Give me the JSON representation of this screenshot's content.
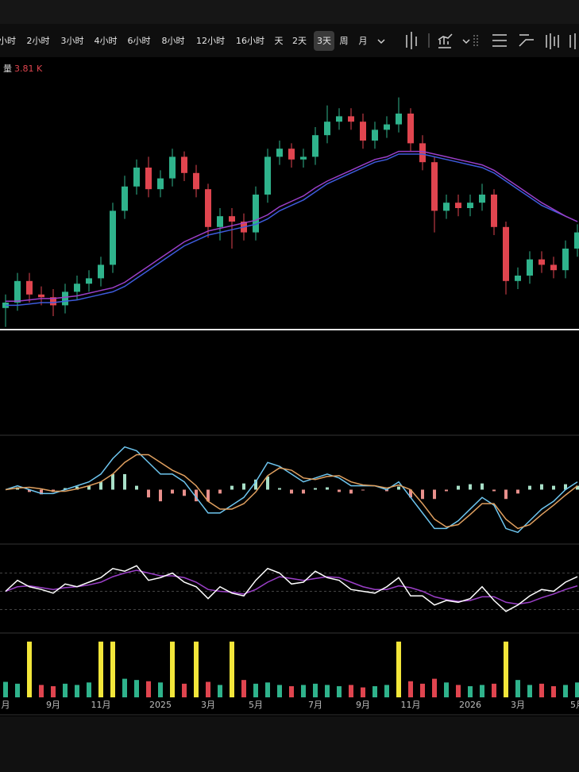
{
  "toolbar": {
    "intervals": [
      "小时",
      "2小时",
      "3小时",
      "4小时",
      "6小时",
      "8小时",
      "12小时",
      "16小时",
      "天",
      "2天",
      "3天",
      "周",
      "月"
    ],
    "selected": 10
  },
  "chart_data": [
    {
      "type": "candlestick",
      "volume_label": "量",
      "volume_value": "3.81 K",
      "categories": [
        "月",
        null,
        null,
        null,
        "9月",
        null,
        null,
        null,
        "11月",
        null,
        null,
        null,
        null,
        "2025",
        null,
        null,
        null,
        "3月",
        null,
        null,
        null,
        "5月",
        null,
        null,
        null,
        null,
        "7月",
        null,
        null,
        null,
        "9月",
        null,
        null,
        null,
        "11月",
        null,
        null,
        null,
        null,
        "2026",
        null,
        null,
        null,
        "3月",
        null,
        null,
        null,
        null,
        "5月"
      ],
      "open": [
        8,
        10,
        18,
        13,
        12,
        9,
        14,
        17,
        19,
        24,
        44,
        53,
        60,
        52,
        56,
        64,
        58,
        52,
        38,
        42,
        40,
        36,
        50,
        64,
        67,
        63,
        64,
        72,
        77,
        79,
        77,
        70,
        74,
        76,
        80,
        69,
        62,
        44,
        47,
        45,
        47,
        50,
        38,
        18,
        20,
        26,
        24,
        22,
        30
      ],
      "close": [
        10,
        18,
        13,
        12,
        9,
        14,
        17,
        19,
        24,
        44,
        53,
        60,
        52,
        56,
        64,
        58,
        52,
        38,
        42,
        40,
        36,
        50,
        64,
        67,
        63,
        64,
        72,
        77,
        79,
        77,
        70,
        74,
        76,
        80,
        69,
        62,
        44,
        47,
        45,
        47,
        50,
        38,
        18,
        20,
        26,
        24,
        22,
        30,
        36
      ],
      "high": [
        13,
        21,
        21,
        16,
        15,
        17,
        20,
        22,
        27,
        47,
        57,
        63,
        64,
        59,
        67,
        66,
        61,
        54,
        45,
        45,
        43,
        53,
        67,
        70,
        69,
        67,
        75,
        83,
        82,
        82,
        80,
        77,
        79,
        86,
        82,
        72,
        64,
        50,
        50,
        50,
        54,
        52,
        40,
        23,
        29,
        29,
        27,
        33,
        39
      ],
      "low": [
        1,
        7,
        10,
        9,
        5,
        6,
        11,
        14,
        16,
        21,
        41,
        50,
        49,
        49,
        53,
        55,
        49,
        34,
        33,
        30,
        33,
        33,
        47,
        61,
        60,
        60,
        61,
        69,
        74,
        74,
        67,
        67,
        71,
        73,
        66,
        59,
        36,
        41,
        42,
        42,
        44,
        35,
        13,
        15,
        17,
        21,
        19,
        19,
        27
      ],
      "up_color": "#2fb38c",
      "down_color": "#e0454f",
      "ylim": [
        0,
        100
      ],
      "series": [
        {
          "color": "#3d5bdc",
          "values": [
            9,
            9,
            9.5,
            10,
            10,
            10.5,
            11,
            12,
            13,
            14,
            16,
            19,
            22,
            25,
            28,
            31,
            33,
            35,
            36,
            37,
            38,
            39,
            41,
            44,
            46,
            48,
            51,
            54,
            56,
            58,
            60,
            62,
            63,
            65,
            65,
            65,
            64,
            63,
            62,
            61,
            60,
            58,
            55,
            52,
            49,
            46,
            44,
            42,
            40
          ]
        },
        {
          "color": "#9b3fc8",
          "values": [
            10.5,
            10.5,
            11,
            11.5,
            11.5,
            12,
            12.5,
            13.5,
            14.5,
            15.5,
            17.5,
            20.5,
            23.5,
            26.5,
            29.5,
            32.5,
            34.5,
            36.5,
            37.5,
            38.5,
            39.5,
            40.5,
            42.5,
            45.5,
            47.5,
            49.5,
            52.5,
            55,
            57,
            59,
            61,
            63,
            64,
            66,
            66,
            66,
            65,
            64,
            63,
            62,
            61,
            59,
            56,
            53,
            50,
            47,
            44.5,
            42,
            40
          ]
        }
      ]
    },
    {
      "type": "macd",
      "ylim": [
        -7,
        7
      ],
      "series": [
        {
          "color": "#6ec6f0",
          "values": [
            0,
            0.5,
            0,
            -0.5,
            -0.5,
            0,
            0.5,
            1,
            2,
            4,
            5.5,
            5,
            3.5,
            2,
            2,
            1,
            -1,
            -3,
            -3,
            -2,
            -1,
            1,
            3.5,
            3,
            2,
            1,
            1.5,
            2,
            1.5,
            0.5,
            0.5,
            0.5,
            0,
            1,
            -1,
            -3,
            -5,
            -5,
            -4,
            -2.5,
            -1,
            -2,
            -5,
            -5.5,
            -4,
            -2.5,
            -1.5,
            0,
            1
          ]
        },
        {
          "color": "#e0a060",
          "values": [
            0,
            0.2,
            0.3,
            0.1,
            -0.2,
            -0.2,
            0.1,
            0.5,
            1,
            2,
            3.5,
            4.5,
            4.5,
            3.5,
            2.5,
            1.8,
            0.5,
            -1.5,
            -2.5,
            -2.5,
            -1.8,
            -0.3,
            1.8,
            2.8,
            2.5,
            1.5,
            1.3,
            1.7,
            1.8,
            1,
            0.6,
            0.5,
            0.2,
            0.6,
            0,
            -1.8,
            -3.8,
            -4.8,
            -4.5,
            -3.2,
            -1.8,
            -1.8,
            -3.8,
            -5,
            -4.5,
            -3.2,
            -2,
            -0.7,
            0.5
          ]
        }
      ],
      "histogram": {
        "up_color": "#a8e0c8",
        "down_color": "#e8908c",
        "values": [
          0,
          0.3,
          -0.3,
          -0.6,
          -0.3,
          0.2,
          0.4,
          0.5,
          1,
          2,
          2,
          0.5,
          -1,
          -1.5,
          -0.5,
          -0.8,
          -1.5,
          -1.5,
          -0.5,
          0.5,
          0.8,
          1.3,
          1.7,
          0.2,
          -0.5,
          -0.5,
          0.2,
          0.3,
          -0.3,
          -0.5,
          -0.1,
          0,
          -0.2,
          0.4,
          -1,
          -1.2,
          -1.2,
          -0.2,
          0.5,
          0.7,
          0.8,
          -0.2,
          -1.2,
          -0.5,
          0.5,
          0.7,
          0.5,
          0.7,
          0.5
        ]
      }
    },
    {
      "type": "line",
      "ylim": [
        0,
        100
      ],
      "yticks": [
        30,
        50,
        70
      ],
      "grid": true,
      "series": [
        {
          "color": "#9b3fc8",
          "values": [
            50,
            55,
            56,
            54,
            52,
            54,
            55,
            57,
            60,
            66,
            70,
            73,
            70,
            67,
            67,
            65,
            60,
            52,
            50,
            49,
            47,
            52,
            60,
            66,
            64,
            62,
            64,
            66,
            65,
            60,
            55,
            52,
            52,
            56,
            54,
            50,
            44,
            41,
            39,
            40,
            44,
            44,
            38,
            36,
            38,
            43,
            47,
            52,
            56
          ]
        },
        {
          "color": "#ffffff",
          "values": [
            50,
            62,
            55,
            52,
            48,
            58,
            55,
            60,
            65,
            75,
            72,
            78,
            62,
            65,
            70,
            60,
            55,
            42,
            55,
            48,
            45,
            62,
            75,
            70,
            58,
            60,
            72,
            65,
            62,
            52,
            50,
            48,
            55,
            65,
            45,
            45,
            35,
            40,
            38,
            42,
            55,
            40,
            28,
            35,
            45,
            52,
            50,
            60,
            66
          ]
        }
      ]
    },
    {
      "type": "bar",
      "ylim": [
        0,
        100
      ],
      "values": [
        25,
        22,
        90,
        20,
        18,
        22,
        20,
        24,
        90,
        90,
        30,
        28,
        26,
        24,
        90,
        22,
        90,
        25,
        20,
        90,
        28,
        22,
        24,
        20,
        18,
        20,
        22,
        20,
        18,
        20,
        16,
        18,
        20,
        90,
        26,
        22,
        30,
        24,
        20,
        18,
        20,
        22,
        90,
        28,
        20,
        22,
        18,
        20,
        24
      ],
      "colors": [
        "#2fb38c",
        "#2fb38c",
        "#f2e63a",
        "#e0454f",
        "#e0454f",
        "#2fb38c",
        "#2fb38c",
        "#2fb38c",
        "#f2e63a",
        "#f2e63a",
        "#2fb38c",
        "#2fb38c",
        "#e0454f",
        "#2fb38c",
        "#f2e63a",
        "#e0454f",
        "#f2e63a",
        "#e0454f",
        "#2fb38c",
        "#f2e63a",
        "#e0454f",
        "#2fb38c",
        "#2fb38c",
        "#2fb38c",
        "#e0454f",
        "#2fb38c",
        "#2fb38c",
        "#2fb38c",
        "#2fb38c",
        "#e0454f",
        "#e0454f",
        "#2fb38c",
        "#2fb38c",
        "#f2e63a",
        "#e0454f",
        "#e0454f",
        "#e0454f",
        "#2fb38c",
        "#e0454f",
        "#2fb38c",
        "#2fb38c",
        "#e0454f",
        "#f2e63a",
        "#2fb38c",
        "#2fb38c",
        "#e0454f",
        "#e0454f",
        "#2fb38c",
        "#2fb38c"
      ]
    }
  ]
}
